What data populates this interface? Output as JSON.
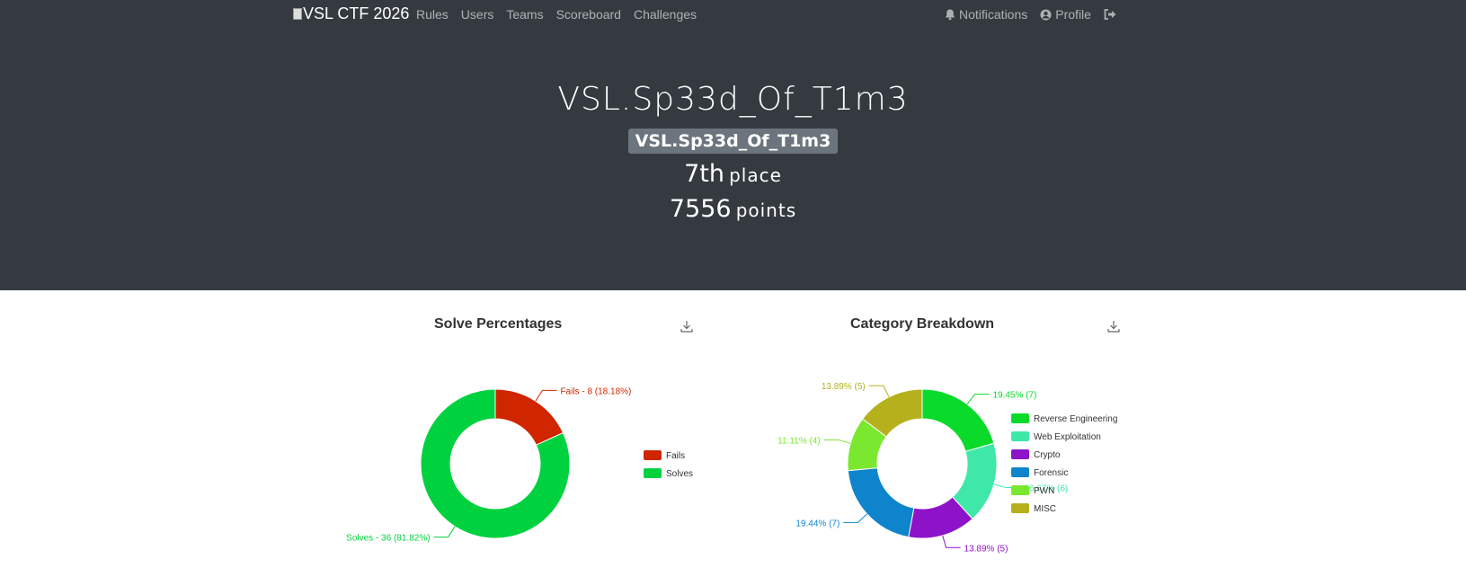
{
  "nav": {
    "brand": "VSL CTF 2026",
    "links": [
      "Rules",
      "Users",
      "Teams",
      "Scoreboard",
      "Challenges"
    ],
    "notifications": "Notifications",
    "profile": "Profile"
  },
  "team": {
    "name": "VSL.Sp33d_Of_T1m3",
    "badge": "VSL.Sp33d_Of_T1m3",
    "place_value": "7th",
    "place_label": "place",
    "points_value": "7556",
    "points_label": "points"
  },
  "colors": {
    "header_bg": "#343a40",
    "fails": "#cf2600",
    "solves": "#00d13f"
  },
  "chart_data": [
    {
      "type": "pie",
      "title": "Solve Percentages",
      "series": [
        {
          "name": "Fails",
          "value": 8,
          "percent": 18.18,
          "label": "Fails - 8 (18.18%)",
          "color": "#cf2600"
        },
        {
          "name": "Solves",
          "value": 36,
          "percent": 81.82,
          "label": "Solves - 36 (81.82%)",
          "color": "#00d13f"
        }
      ],
      "legend": "right"
    },
    {
      "type": "pie",
      "title": "Category Breakdown",
      "series": [
        {
          "name": "Reverse Engineering",
          "value": 7,
          "percent": 19.45,
          "label": "19.45% (7)",
          "color": "#0adb2a"
        },
        {
          "name": "Web Exploitation",
          "value": 6,
          "percent": 16.67,
          "label": "16.67% (6)",
          "color": "#3fe8a9"
        },
        {
          "name": "Crypto",
          "value": 5,
          "percent": 13.89,
          "label": "13.89% (5)",
          "color": "#8d13c9"
        },
        {
          "name": "Forensic",
          "value": 7,
          "percent": 19.44,
          "label": "19.44% (7)",
          "color": "#0e84cc"
        },
        {
          "name": "PWN",
          "value": 4,
          "percent": 11.11,
          "label": "11.11% (4)",
          "color": "#7ae82e"
        },
        {
          "name": "MISC",
          "value": 5,
          "percent": 13.89,
          "label": "13.89% (5)",
          "color": "#b5b01b"
        }
      ],
      "legend": "right"
    }
  ]
}
